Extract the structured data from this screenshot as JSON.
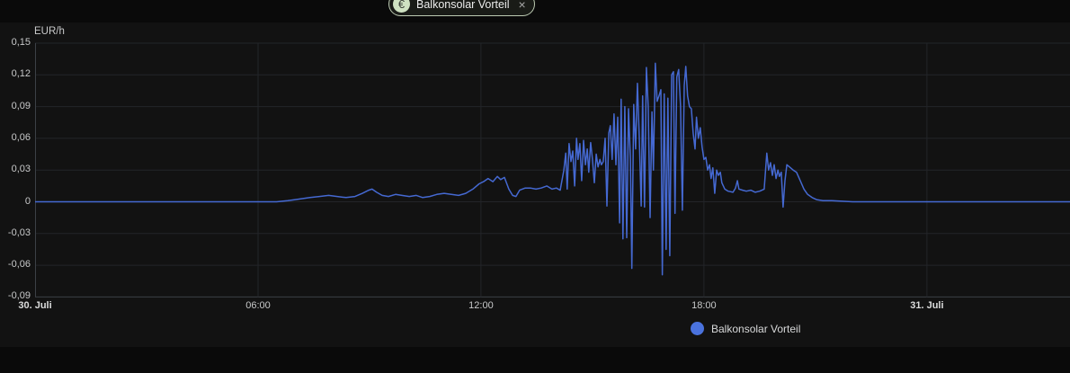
{
  "chip": {
    "icon": "€",
    "label": "Balkonsolar Vorteil",
    "close": "×"
  },
  "axis_unit": "EUR/h",
  "legend": {
    "label": "Balkonsolar Vorteil",
    "color": "#4a72dd"
  },
  "colors": {
    "background": "#0a0a0a",
    "panel": "#121212",
    "grid": "#232529",
    "axis": "#3c4046",
    "tick_label": "#c8c9ca",
    "line": "#4569d2",
    "chip_border": "#bccab2",
    "chip_icon_bg": "#cfe2c2"
  },
  "chart_data": {
    "type": "line",
    "title": "Balkonsolar Vorteil",
    "ylabel": "EUR/h",
    "xlabel": "",
    "x_unit": "hours since 30. Juli 00:00",
    "xlim": [
      0,
      27.85
    ],
    "ylim": [
      -0.09,
      0.15
    ],
    "grid": true,
    "legend_position": "bottom",
    "x_ticks": [
      {
        "h": 0,
        "label": "30. Juli",
        "bold": true,
        "grid": false
      },
      {
        "h": 6,
        "label": "06:00",
        "bold": false,
        "grid": true
      },
      {
        "h": 12,
        "label": "12:00",
        "bold": false,
        "grid": true
      },
      {
        "h": 18,
        "label": "18:00",
        "bold": false,
        "grid": true
      },
      {
        "h": 24,
        "label": "31. Juli",
        "bold": true,
        "grid": true
      }
    ],
    "y_ticks": [
      {
        "v": 0.15,
        "label": "0,15"
      },
      {
        "v": 0.12,
        "label": "0,12"
      },
      {
        "v": 0.09,
        "label": "0,09"
      },
      {
        "v": 0.06,
        "label": "0,06"
      },
      {
        "v": 0.03,
        "label": "0,03"
      },
      {
        "v": 0,
        "label": "0"
      },
      {
        "v": -0.03,
        "label": "-0,03"
      },
      {
        "v": -0.06,
        "label": "-0,06"
      },
      {
        "v": -0.09,
        "label": "-0,09"
      }
    ],
    "series": [
      {
        "name": "Balkonsolar Vorteil",
        "color": "#4569d2",
        "points": [
          [
            0,
            0
          ],
          [
            6.5,
            0
          ],
          [
            6.8,
            0.001
          ],
          [
            7.0,
            0.002
          ],
          [
            7.4,
            0.004
          ],
          [
            7.65,
            0.005
          ],
          [
            7.9,
            0.006
          ],
          [
            8.13,
            0.005
          ],
          [
            8.37,
            0.004
          ],
          [
            8.61,
            0.005
          ],
          [
            8.81,
            0.008
          ],
          [
            8.98,
            0.011
          ],
          [
            9.07,
            0.012
          ],
          [
            9.19,
            0.009
          ],
          [
            9.34,
            0.006
          ],
          [
            9.51,
            0.005
          ],
          [
            9.7,
            0.007
          ],
          [
            9.87,
            0.006
          ],
          [
            10.07,
            0.005
          ],
          [
            10.26,
            0.006
          ],
          [
            10.43,
            0.004
          ],
          [
            10.62,
            0.005
          ],
          [
            10.81,
            0.007
          ],
          [
            11.01,
            0.008
          ],
          [
            11.2,
            0.007
          ],
          [
            11.4,
            0.006
          ],
          [
            11.59,
            0.008
          ],
          [
            11.78,
            0.012
          ],
          [
            11.95,
            0.017
          ],
          [
            12.07,
            0.019
          ],
          [
            12.19,
            0.022
          ],
          [
            12.32,
            0.019
          ],
          [
            12.44,
            0.024
          ],
          [
            12.53,
            0.021
          ],
          [
            12.63,
            0.023
          ],
          [
            12.75,
            0.012
          ],
          [
            12.85,
            0.006
          ],
          [
            12.94,
            0.005
          ],
          [
            13.04,
            0.011
          ],
          [
            13.19,
            0.013
          ],
          [
            13.33,
            0.013
          ],
          [
            13.48,
            0.012
          ],
          [
            13.62,
            0.013
          ],
          [
            13.77,
            0.015
          ],
          [
            13.91,
            0.012
          ],
          [
            14.03,
            0.013
          ],
          [
            14.13,
            0.011
          ],
          [
            14.23,
            0.03
          ],
          [
            14.28,
            0.046
          ],
          [
            14.32,
            0.012
          ],
          [
            14.37,
            0.055
          ],
          [
            14.42,
            0.038
          ],
          [
            14.47,
            0.048
          ],
          [
            14.52,
            0.015
          ],
          [
            14.57,
            0.06
          ],
          [
            14.61,
            0.04
          ],
          [
            14.66,
            0.055
          ],
          [
            14.71,
            0.02
          ],
          [
            14.76,
            0.058
          ],
          [
            14.81,
            0.035
          ],
          [
            14.86,
            0.05
          ],
          [
            14.9,
            0.028
          ],
          [
            14.95,
            0.056
          ],
          [
            15.0,
            0.04
          ],
          [
            15.05,
            0.018
          ],
          [
            15.1,
            0.045
          ],
          [
            15.15,
            0.033
          ],
          [
            15.2,
            0.04
          ],
          [
            15.24,
            0.035
          ],
          [
            15.29,
            0.038
          ],
          [
            15.34,
            0.06
          ],
          [
            15.39,
            -0.004
          ],
          [
            15.44,
            0.065
          ],
          [
            15.48,
            0.072
          ],
          [
            15.53,
            0.04
          ],
          [
            15.58,
            0.083
          ],
          [
            15.63,
            0.035
          ],
          [
            15.68,
            0.08
          ],
          [
            15.73,
            -0.02
          ],
          [
            15.77,
            0.097
          ],
          [
            15.82,
            -0.035
          ],
          [
            15.87,
            0.09
          ],
          [
            15.92,
            -0.034
          ],
          [
            15.97,
            0.088
          ],
          [
            16.02,
            0.04
          ],
          [
            16.06,
            -0.063
          ],
          [
            16.11,
            0.092
          ],
          [
            16.16,
            0.05
          ],
          [
            16.21,
            0.112
          ],
          [
            16.26,
            0.06
          ],
          [
            16.31,
            -0.004
          ],
          [
            16.35,
            0.1
          ],
          [
            16.4,
            -0.005
          ],
          [
            16.45,
            0.127
          ],
          [
            16.5,
            0.09
          ],
          [
            16.55,
            -0.015
          ],
          [
            16.6,
            0.085
          ],
          [
            16.64,
            0.03
          ],
          [
            16.69,
            0.131
          ],
          [
            16.74,
            0.095
          ],
          [
            16.79,
            0.1
          ],
          [
            16.84,
            0.106
          ],
          [
            16.88,
            -0.069
          ],
          [
            16.93,
            0.102
          ],
          [
            16.98,
            -0.045
          ],
          [
            17.03,
            0.098
          ],
          [
            17.08,
            -0.051
          ],
          [
            17.13,
            0.12
          ],
          [
            17.18,
            0.123
          ],
          [
            17.22,
            -0.011
          ],
          [
            17.27,
            0.118
          ],
          [
            17.32,
            0.125
          ],
          [
            17.37,
            0.09
          ],
          [
            17.42,
            -0.008
          ],
          [
            17.47,
            0.11
          ],
          [
            17.51,
            0.128
          ],
          [
            17.56,
            0.1
          ],
          [
            17.61,
            0.09
          ],
          [
            17.66,
            0.088
          ],
          [
            17.71,
            0.065
          ],
          [
            17.76,
            0.05
          ],
          [
            17.8,
            0.08
          ],
          [
            17.85,
            0.06
          ],
          [
            17.9,
            0.07
          ],
          [
            17.95,
            0.052
          ],
          [
            18.0,
            0.04
          ],
          [
            18.05,
            0.042
          ],
          [
            18.1,
            0.03
          ],
          [
            18.15,
            0.035
          ],
          [
            18.19,
            0.022
          ],
          [
            18.24,
            0.032
          ],
          [
            18.29,
            0.008
          ],
          [
            18.34,
            0.03
          ],
          [
            18.39,
            0.025
          ],
          [
            18.44,
            0.028
          ],
          [
            18.48,
            0.018
          ],
          [
            18.56,
            0.012
          ],
          [
            18.65,
            0.01
          ],
          [
            18.78,
            0.009
          ],
          [
            18.85,
            0.013
          ],
          [
            18.9,
            0.02
          ],
          [
            18.94,
            0.012
          ],
          [
            19.04,
            0.011
          ],
          [
            19.14,
            0.01
          ],
          [
            19.26,
            0.011
          ],
          [
            19.38,
            0.009
          ],
          [
            19.5,
            0.01
          ],
          [
            19.62,
            0.012
          ],
          [
            19.69,
            0.046
          ],
          [
            19.74,
            0.03
          ],
          [
            19.79,
            0.037
          ],
          [
            19.84,
            0.025
          ],
          [
            19.89,
            0.035
          ],
          [
            19.94,
            0.022
          ],
          [
            19.99,
            0.03
          ],
          [
            20.03,
            0.024
          ],
          [
            20.08,
            0.028
          ],
          [
            20.13,
            -0.005
          ],
          [
            20.18,
            0.02
          ],
          [
            20.23,
            0.035
          ],
          [
            20.3,
            0.033
          ],
          [
            20.4,
            0.03
          ],
          [
            20.49,
            0.028
          ],
          [
            20.59,
            0.02
          ],
          [
            20.69,
            0.012
          ],
          [
            20.79,
            0.007
          ],
          [
            20.91,
            0.004
          ],
          [
            21.03,
            0.002
          ],
          [
            21.2,
            0.001
          ],
          [
            21.44,
            0.001
          ],
          [
            22,
            0
          ],
          [
            27.85,
            0
          ]
        ]
      }
    ]
  }
}
